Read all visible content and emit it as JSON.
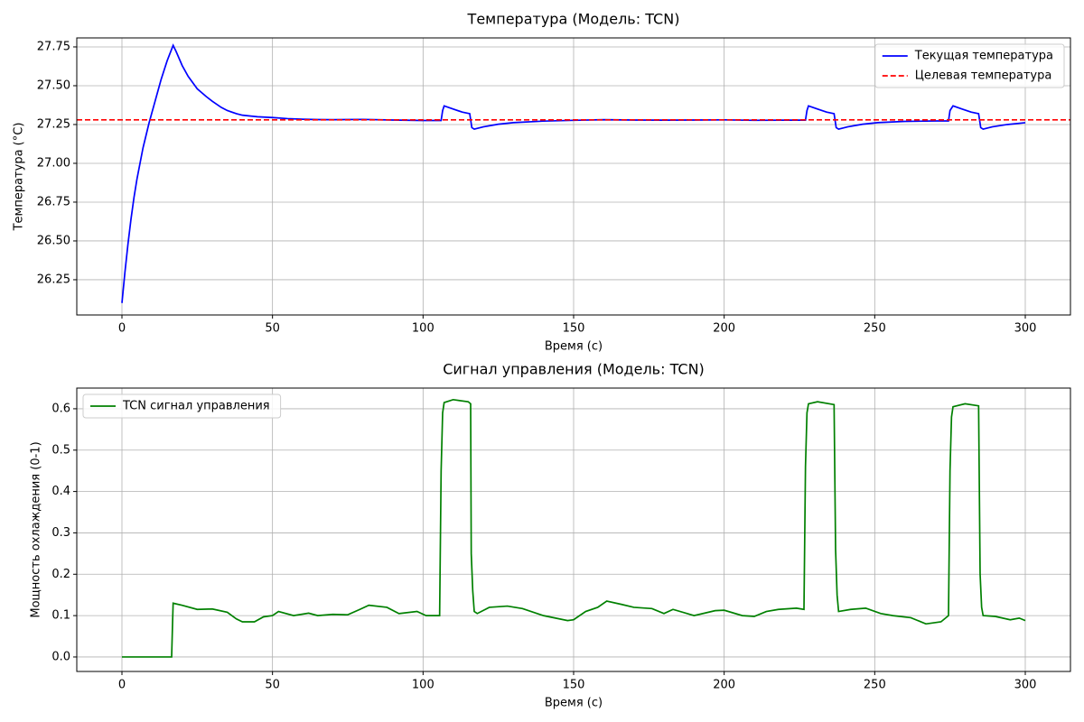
{
  "chart_data": [
    {
      "type": "line",
      "title": "Температура (Модель: TCN)",
      "xlabel": "Время (с)",
      "ylabel": "Температура (°C)",
      "xlim": [
        -15,
        315
      ],
      "ylim": [
        26.023,
        27.808
      ],
      "xticks": [
        0,
        50,
        100,
        150,
        200,
        250,
        300
      ],
      "yticks": [
        26.25,
        {
          "value": 26.5,
          "label": "26.50"
        },
        26.75,
        {
          "value": 27.0,
          "label": "27.00"
        },
        27.25,
        {
          "value": 27.5,
          "label": "27.50"
        },
        27.75
      ],
      "grid": true,
      "legend": "upper right",
      "series": [
        {
          "name": "Текущая температура",
          "color": "#0000ff",
          "x": [
            0,
            1,
            2,
            3,
            4,
            5,
            6,
            7,
            8,
            9,
            10,
            11,
            12,
            13,
            14,
            15,
            16,
            17,
            18,
            20,
            22,
            25,
            28,
            30,
            33,
            35,
            38,
            40,
            45,
            50,
            55,
            60,
            65,
            70,
            80,
            90,
            100,
            106,
            106.5,
            107,
            110,
            113,
            115.5,
            116.2,
            117,
            120,
            125,
            130,
            140,
            150,
            160,
            170,
            180,
            190,
            200,
            210,
            220,
            227,
            227.5,
            228,
            231,
            234,
            236.5,
            237.2,
            238,
            241,
            246,
            251,
            260,
            270,
            274.5,
            275,
            276,
            279,
            282,
            284.5,
            285.2,
            286,
            289,
            294,
            300
          ],
          "values": [
            26.1,
            26.3,
            26.48,
            26.64,
            26.78,
            26.9,
            27.0,
            27.1,
            27.18,
            27.26,
            27.33,
            27.4,
            27.47,
            27.54,
            27.6,
            27.66,
            27.71,
            27.76,
            27.72,
            27.63,
            27.56,
            27.48,
            27.43,
            27.4,
            27.36,
            27.34,
            27.32,
            27.31,
            27.3,
            27.295,
            27.288,
            27.284,
            27.282,
            27.281,
            27.283,
            27.279,
            27.276,
            27.276,
            27.34,
            27.37,
            27.35,
            27.33,
            27.32,
            27.23,
            27.22,
            27.235,
            27.252,
            27.262,
            27.272,
            27.277,
            27.281,
            27.279,
            27.278,
            27.279,
            27.28,
            27.277,
            27.278,
            27.278,
            27.34,
            27.37,
            27.35,
            27.33,
            27.32,
            27.23,
            27.22,
            27.235,
            27.252,
            27.262,
            27.27,
            27.273,
            27.273,
            27.34,
            27.37,
            27.35,
            27.33,
            27.32,
            27.23,
            27.22,
            27.235,
            27.25,
            27.262
          ]
        }
      ],
      "reference_lines": [
        {
          "name": "Целевая температура",
          "color": "#ff0000",
          "value": 27.28,
          "dashed": true
        }
      ]
    },
    {
      "type": "line",
      "title": "Сигнал управления (Модель: TCN)",
      "xlabel": "Время (с)",
      "ylabel": "Мощность охлаждения (0-1)",
      "xlim": [
        -15,
        315
      ],
      "ylim": [
        -0.035,
        0.65
      ],
      "xticks": [
        0,
        50,
        100,
        150,
        200,
        250,
        300
      ],
      "yticks": [
        {
          "value": 0,
          "label": "0.0"
        },
        0.1,
        0.2,
        0.3,
        0.4,
        0.5,
        0.6
      ],
      "grid": true,
      "legend": "upper left",
      "series": [
        {
          "name": "TCN сигнал управления",
          "color": "#008000",
          "x": [
            0,
            16.5,
            16.8,
            17,
            20,
            25,
            30,
            35,
            38,
            40,
            44,
            47,
            50,
            52,
            57,
            62,
            65,
            70,
            75,
            79,
            82,
            88,
            92,
            98,
            101,
            105.5,
            106,
            106.5,
            107,
            110,
            115,
            115.8,
            116,
            116.5,
            117,
            118,
            122,
            128,
            133,
            140,
            148,
            150,
            154,
            158,
            161,
            166,
            170,
            176,
            180,
            183,
            190,
            197,
            200,
            206,
            210,
            214,
            218,
            224,
            226.5,
            227,
            227.5,
            228,
            231,
            236.5,
            237,
            237.5,
            238,
            242,
            247,
            252,
            256,
            262,
            267,
            272,
            274.5,
            275,
            275.5,
            276,
            280,
            284.5,
            285,
            285.5,
            286,
            290,
            295,
            298,
            300
          ],
          "values": [
            0,
            0,
            0.08,
            0.13,
            0.125,
            0.115,
            0.116,
            0.108,
            0.092,
            0.085,
            0.085,
            0.097,
            0.1,
            0.11,
            0.1,
            0.106,
            0.1,
            0.103,
            0.102,
            0.115,
            0.125,
            0.12,
            0.105,
            0.11,
            0.1,
            0.1,
            0.45,
            0.59,
            0.615,
            0.622,
            0.617,
            0.612,
            0.25,
            0.16,
            0.11,
            0.105,
            0.12,
            0.123,
            0.117,
            0.1,
            0.088,
            0.09,
            0.11,
            0.12,
            0.135,
            0.127,
            0.12,
            0.117,
            0.105,
            0.115,
            0.1,
            0.112,
            0.113,
            0.1,
            0.098,
            0.11,
            0.115,
            0.118,
            0.115,
            0.46,
            0.59,
            0.612,
            0.617,
            0.61,
            0.26,
            0.15,
            0.11,
            0.115,
            0.118,
            0.105,
            0.1,
            0.095,
            0.08,
            0.085,
            0.1,
            0.45,
            0.58,
            0.605,
            0.612,
            0.607,
            0.2,
            0.12,
            0.1,
            0.098,
            0.09,
            0.094,
            0.088
          ]
        }
      ]
    }
  ]
}
